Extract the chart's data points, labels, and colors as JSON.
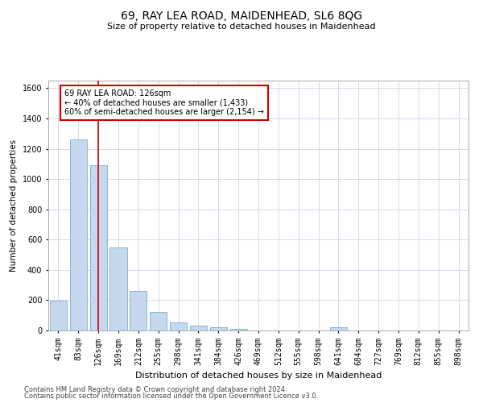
{
  "title": "69, RAY LEA ROAD, MAIDENHEAD, SL6 8QG",
  "subtitle": "Size of property relative to detached houses in Maidenhead",
  "xlabel": "Distribution of detached houses by size in Maidenhead",
  "ylabel": "Number of detached properties",
  "categories": [
    "41sqm",
    "83sqm",
    "126sqm",
    "169sqm",
    "212sqm",
    "255sqm",
    "298sqm",
    "341sqm",
    "384sqm",
    "426sqm",
    "469sqm",
    "512sqm",
    "555sqm",
    "598sqm",
    "641sqm",
    "684sqm",
    "727sqm",
    "769sqm",
    "812sqm",
    "855sqm",
    "898sqm"
  ],
  "values": [
    195,
    1260,
    1090,
    550,
    260,
    120,
    55,
    30,
    20,
    12,
    0,
    0,
    0,
    0,
    20,
    0,
    0,
    0,
    0,
    0,
    0
  ],
  "bar_color": "#c5d8ee",
  "bar_edge_color": "#7aadd4",
  "redline_index": 2,
  "annotation_line1": "69 RAY LEA ROAD: 126sqm",
  "annotation_line2": "← 40% of detached houses are smaller (1,433)",
  "annotation_line3": "60% of semi-detached houses are larger (2,154) →",
  "ylim": [
    0,
    1650
  ],
  "yticks": [
    0,
    200,
    400,
    600,
    800,
    1000,
    1200,
    1400,
    1600
  ],
  "footer_line1": "Contains HM Land Registry data © Crown copyright and database right 2024.",
  "footer_line2": "Contains public sector information licensed under the Open Government Licence v3.0.",
  "background_color": "#ffffff",
  "grid_color": "#ccd6e8",
  "annotation_box_facecolor": "#ffffff",
  "annotation_box_edgecolor": "#cc0000",
  "redline_color": "#cc0000",
  "title_fontsize": 10,
  "subtitle_fontsize": 8,
  "ylabel_fontsize": 7.5,
  "xlabel_fontsize": 8,
  "tick_fontsize": 7,
  "footer_fontsize": 6,
  "annotation_fontsize": 7
}
